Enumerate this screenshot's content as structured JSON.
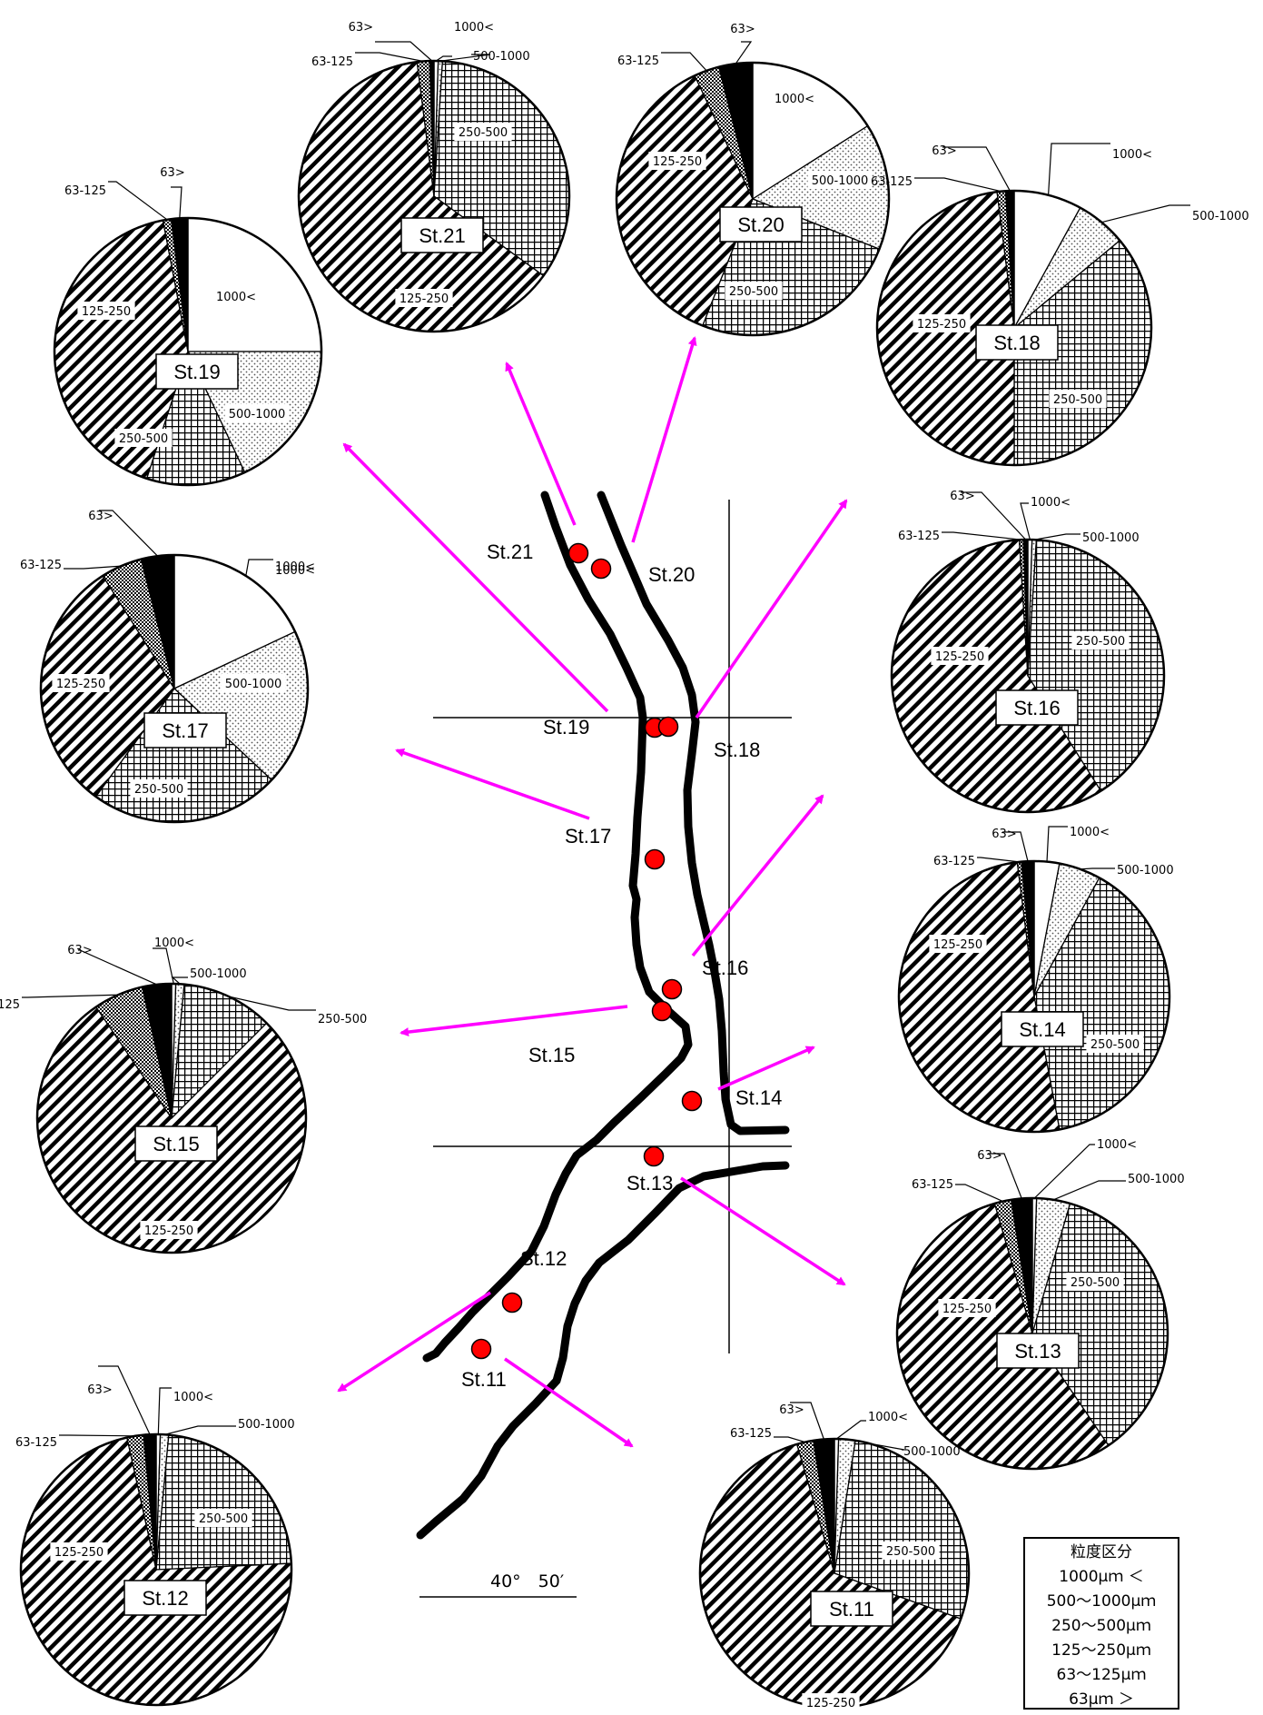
{
  "colors": {
    "arrow": "#ff00ff",
    "river": "#000000",
    "station_dot": "#ff0000"
  },
  "map": {
    "latitude_label": "40°　50′",
    "labels": [
      {
        "id": "St.21",
        "text": "St.21"
      },
      {
        "id": "St.20",
        "text": "St.20"
      },
      {
        "id": "St.19",
        "text": "St.19"
      },
      {
        "id": "St.18",
        "text": "St.18"
      },
      {
        "id": "St.17",
        "text": "St.17"
      },
      {
        "id": "St.16",
        "text": "St.16"
      },
      {
        "id": "St.15",
        "text": "St.15"
      },
      {
        "id": "St.14",
        "text": "St.14"
      },
      {
        "id": "St.13",
        "text": "St.13"
      },
      {
        "id": "St.12",
        "text": "St.12"
      },
      {
        "id": "St.11",
        "text": "St.11"
      }
    ]
  },
  "legend": {
    "title": "粒度区分",
    "items": [
      "1000μｍ ＜",
      "500～1000μｍ",
      "250～500μｍ",
      "125～250μｍ",
      "63～125μｍ",
      "63μｍ ＞"
    ]
  },
  "chart_data": {
    "type": "pie",
    "categories": [
      "1000<",
      "500-1000",
      "250-500",
      "125-250",
      "63-125",
      "63>"
    ],
    "category_labels": [
      "1000<",
      "500-1000",
      "250-500",
      "125-250",
      "63-125",
      "63>"
    ],
    "charts": [
      {
        "station": "St.21",
        "values": [
          0.5,
          0.5,
          34,
          63,
          1.5,
          0.5
        ]
      },
      {
        "station": "St.20",
        "values": [
          16,
          15,
          25,
          37,
          3,
          4
        ]
      },
      {
        "station": "St.19",
        "values": [
          25,
          18,
          12,
          42,
          1,
          2
        ]
      },
      {
        "station": "St.18",
        "values": [
          8,
          6,
          36,
          48,
          1,
          1
        ]
      },
      {
        "station": "St.17",
        "values": [
          18,
          19,
          23,
          31,
          5,
          4
        ]
      },
      {
        "station": "St.16",
        "values": [
          0.5,
          0.5,
          40,
          58,
          0.5,
          0.5
        ]
      },
      {
        "station": "St.15",
        "values": [
          0.5,
          1,
          11,
          78,
          6,
          3.5
        ]
      },
      {
        "station": "St.14",
        "values": [
          3,
          5,
          39,
          51,
          0.5,
          1.5
        ]
      },
      {
        "station": "St.13",
        "values": [
          0.5,
          4,
          36,
          55,
          2,
          2.5
        ]
      },
      {
        "station": "St.12",
        "values": [
          0.5,
          1,
          23,
          73,
          2,
          1.5
        ]
      },
      {
        "station": "St.11",
        "values": [
          0.5,
          2,
          28,
          65,
          2,
          2.5
        ]
      }
    ]
  }
}
